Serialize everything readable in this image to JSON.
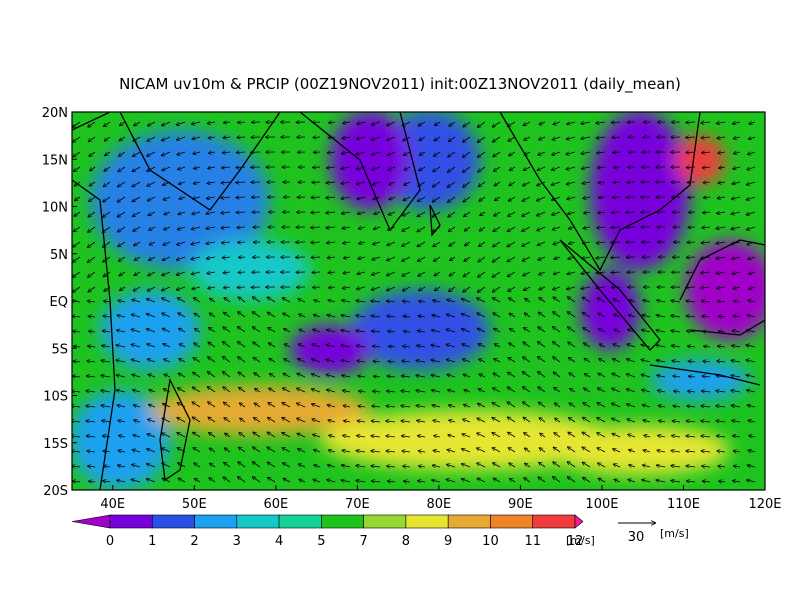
{
  "title": "NICAM uv10m & PRCIP (00Z19NOV2011) init:00Z13NOV2011 (daily_mean)",
  "map": {
    "xlim": [
      35,
      120
    ],
    "ylim": [
      -20,
      20
    ],
    "xticks": [
      {
        "value": 40,
        "label": "40E"
      },
      {
        "value": 50,
        "label": "50E"
      },
      {
        "value": 60,
        "label": "60E"
      },
      {
        "value": 70,
        "label": "70E"
      },
      {
        "value": 80,
        "label": "80E"
      },
      {
        "value": 90,
        "label": "90E"
      },
      {
        "value": 100,
        "label": "100E"
      },
      {
        "value": 110,
        "label": "110E"
      },
      {
        "value": 120,
        "label": "120E"
      }
    ],
    "yticks": [
      {
        "value": 20,
        "label": "20N"
      },
      {
        "value": 15,
        "label": "15N"
      },
      {
        "value": 10,
        "label": "10N"
      },
      {
        "value": 5,
        "label": "5N"
      },
      {
        "value": 0,
        "label": "EQ"
      },
      {
        "value": -5,
        "label": "5S"
      },
      {
        "value": -10,
        "label": "10S"
      },
      {
        "value": -15,
        "label": "15S"
      },
      {
        "value": -20,
        "label": "20S"
      }
    ]
  },
  "colorbar": {
    "levels": [
      0,
      1,
      2,
      3,
      4,
      5,
      7,
      8,
      9,
      10,
      11,
      12
    ],
    "colors": [
      "#a000c8",
      "#7800dc",
      "#2850e6",
      "#1ea0f0",
      "#14c8c8",
      "#14d296",
      "#1ec31e",
      "#96d732",
      "#e6e632",
      "#e6aa32",
      "#f08228",
      "#f03c3c",
      "#f01e96"
    ],
    "unit": "[m/s]"
  },
  "reference_vector": {
    "value": 30,
    "unit": "[m/s]"
  }
}
